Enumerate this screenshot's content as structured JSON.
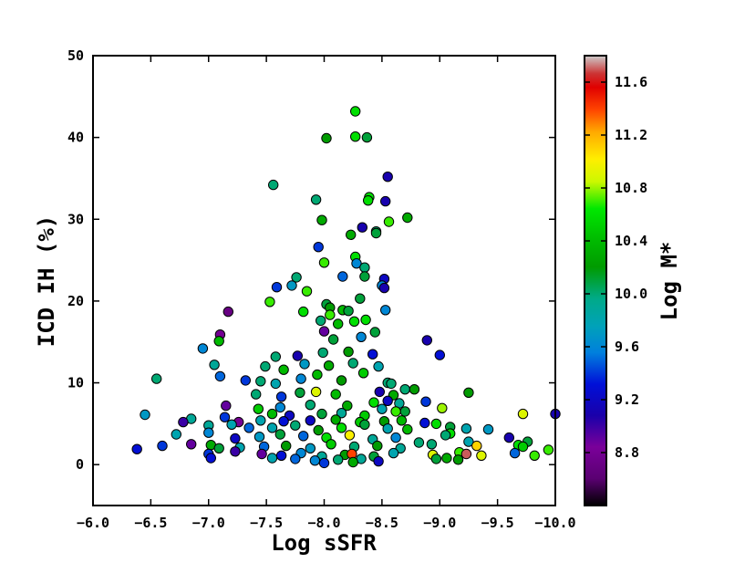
{
  "chart_data": {
    "type": "scatter",
    "title": "",
    "xlabel": "Log sSFR",
    "ylabel": "ICD IH (%)",
    "xlim": [
      -6.0,
      -10.0
    ],
    "ylim": [
      -5,
      50
    ],
    "x_ticks": [
      -6.0,
      -6.5,
      -7.0,
      -7.5,
      -8.0,
      -8.5,
      -9.0,
      -9.5,
      -10.0
    ],
    "x_tick_labels": [
      "−6.0",
      "−6.5",
      "−7.0",
      "−7.5",
      "−8.0",
      "−8.5",
      "−9.0",
      "−9.5",
      "−10.0"
    ],
    "y_ticks": [
      0,
      10,
      20,
      30,
      40,
      50
    ],
    "y_tick_labels": [
      "0",
      "10",
      "20",
      "30",
      "40",
      "50"
    ],
    "grid": false,
    "colorbar": {
      "label": "Log M*",
      "range": [
        8.4,
        11.8
      ],
      "ticks": [
        8.8,
        9.2,
        9.6,
        10.0,
        10.4,
        10.8,
        11.2,
        11.6
      ],
      "tick_labels": [
        "8.8",
        "9.2",
        "9.6",
        "10.0",
        "10.4",
        "10.8",
        "11.2",
        "11.6"
      ],
      "colormap": "nipy_spectral"
    },
    "color_encoding": "Log M*",
    "points": [
      [
        -8.27,
        43.2,
        10.6
      ],
      [
        -8.02,
        39.9,
        10.2
      ],
      [
        -8.27,
        40.1,
        10.6
      ],
      [
        -8.37,
        40.0,
        10.1
      ],
      [
        -8.55,
        35.2,
        9.1
      ],
      [
        -7.56,
        34.2,
        10.0
      ],
      [
        -8.53,
        32.2,
        9.1
      ],
      [
        -8.39,
        32.7,
        10.6
      ],
      [
        -8.38,
        32.3,
        10.6
      ],
      [
        -7.93,
        32.4,
        10.0
      ],
      [
        -8.72,
        30.2,
        10.3
      ],
      [
        -8.56,
        29.7,
        10.7
      ],
      [
        -7.98,
        29.9,
        10.3
      ],
      [
        -8.33,
        29.0,
        9.1
      ],
      [
        -8.45,
        28.5,
        10.0
      ],
      [
        -8.45,
        28.3,
        10.1
      ],
      [
        -8.23,
        28.1,
        10.3
      ],
      [
        -7.95,
        26.6,
        9.4
      ],
      [
        -8.27,
        25.4,
        10.6
      ],
      [
        -8.0,
        24.7,
        10.7
      ],
      [
        -8.28,
        24.6,
        9.6
      ],
      [
        -8.35,
        24.1,
        10.0
      ],
      [
        -8.35,
        23.0,
        10.1
      ],
      [
        -8.16,
        23.0,
        9.5
      ],
      [
        -7.76,
        22.9,
        10.0
      ],
      [
        -8.52,
        22.7,
        9.2
      ],
      [
        -7.59,
        21.7,
        9.4
      ],
      [
        -7.72,
        21.9,
        9.7
      ],
      [
        -7.85,
        21.2,
        10.7
      ],
      [
        -8.5,
        21.9,
        9.6
      ],
      [
        -8.52,
        21.6,
        9.1
      ],
      [
        -8.31,
        20.3,
        10.1
      ],
      [
        -7.53,
        19.9,
        10.7
      ],
      [
        -8.02,
        19.6,
        10.1
      ],
      [
        -8.05,
        19.2,
        10.2
      ],
      [
        -8.16,
        18.9,
        10.4
      ],
      [
        -8.21,
        18.8,
        10.1
      ],
      [
        -8.53,
        18.9,
        9.6
      ],
      [
        -7.17,
        18.7,
        8.7
      ],
      [
        -7.82,
        18.7,
        10.6
      ],
      [
        -8.05,
        18.3,
        10.7
      ],
      [
        -7.97,
        17.6,
        10.0
      ],
      [
        -8.12,
        17.2,
        10.4
      ],
      [
        -8.26,
        17.5,
        10.6
      ],
      [
        -8.36,
        17.7,
        10.6
      ],
      [
        -8.0,
        16.3,
        8.9
      ],
      [
        -8.44,
        16.2,
        10.1
      ],
      [
        -7.1,
        15.9,
        8.8
      ],
      [
        -7.09,
        15.1,
        10.4
      ],
      [
        -6.95,
        14.2,
        9.6
      ],
      [
        -8.08,
        15.3,
        10.1
      ],
      [
        -8.32,
        15.6,
        9.6
      ],
      [
        -8.89,
        15.2,
        9.1
      ],
      [
        -7.58,
        13.2,
        10.0
      ],
      [
        -7.77,
        13.3,
        9.1
      ],
      [
        -7.99,
        13.7,
        10.0
      ],
      [
        -8.21,
        13.8,
        10.2
      ],
      [
        -8.42,
        13.5,
        9.3
      ],
      [
        -9.0,
        13.4,
        9.3
      ],
      [
        -7.05,
        12.2,
        9.9
      ],
      [
        -7.49,
        12.0,
        10.0
      ],
      [
        -7.65,
        11.6,
        10.4
      ],
      [
        -7.83,
        12.3,
        9.7
      ],
      [
        -8.04,
        12.1,
        10.3
      ],
      [
        -8.25,
        12.4,
        10.0
      ],
      [
        -8.47,
        12.0,
        9.8
      ],
      [
        -7.1,
        10.8,
        9.5
      ],
      [
        -7.45,
        10.2,
        10.0
      ],
      [
        -7.8,
        10.5,
        9.6
      ],
      [
        -7.94,
        11.0,
        10.4
      ],
      [
        -8.15,
        10.3,
        10.2
      ],
      [
        -8.34,
        11.2,
        10.5
      ],
      [
        -8.55,
        10.0,
        10.0
      ],
      [
        -6.55,
        10.5,
        10.0
      ],
      [
        -7.32,
        10.3,
        9.4
      ],
      [
        -7.58,
        9.9,
        9.8
      ],
      [
        -8.58,
        9.9,
        10.0
      ],
      [
        -8.7,
        9.2,
        10.0
      ],
      [
        -8.78,
        9.2,
        10.2
      ],
      [
        -9.25,
        8.8,
        10.2
      ],
      [
        -7.41,
        8.6,
        10.0
      ],
      [
        -7.63,
        8.3,
        9.4
      ],
      [
        -7.79,
        8.8,
        10.1
      ],
      [
        -7.93,
        8.9,
        10.9
      ],
      [
        -8.1,
        8.6,
        10.4
      ],
      [
        -8.48,
        8.9,
        9.1
      ],
      [
        -8.6,
        8.5,
        10.3
      ],
      [
        -8.65,
        7.5,
        9.9
      ],
      [
        -8.88,
        7.7,
        9.4
      ],
      [
        -7.15,
        7.2,
        8.9
      ],
      [
        -7.43,
        6.8,
        10.5
      ],
      [
        -7.62,
        7.0,
        9.6
      ],
      [
        -7.88,
        7.3,
        10.0
      ],
      [
        -8.2,
        7.2,
        10.3
      ],
      [
        -8.43,
        7.6,
        10.6
      ],
      [
        -8.55,
        7.8,
        9.2
      ],
      [
        -8.7,
        6.5,
        10.1
      ],
      [
        -8.5,
        6.8,
        9.8
      ],
      [
        -6.45,
        6.1,
        9.7
      ],
      [
        -7.55,
        6.2,
        10.4
      ],
      [
        -7.7,
        6.0,
        9.2
      ],
      [
        -7.98,
        6.2,
        10.1
      ],
      [
        -8.15,
        6.3,
        9.9
      ],
      [
        -8.35,
        6.0,
        10.5
      ],
      [
        -8.62,
        6.5,
        10.7
      ],
      [
        -9.02,
        6.9,
        10.8
      ],
      [
        -9.72,
        6.2,
        10.9
      ],
      [
        -10.0,
        6.2,
        9.1
      ],
      [
        -6.85,
        5.6,
        9.9
      ],
      [
        -7.14,
        5.8,
        9.4
      ],
      [
        -7.26,
        5.2,
        8.8
      ],
      [
        -7.45,
        5.4,
        9.8
      ],
      [
        -7.65,
        5.3,
        9.3
      ],
      [
        -7.88,
        5.4,
        9.2
      ],
      [
        -8.1,
        5.5,
        10.3
      ],
      [
        -8.31,
        5.2,
        10.5
      ],
      [
        -8.52,
        5.3,
        10.2
      ],
      [
        -8.67,
        5.4,
        10.4
      ],
      [
        -8.87,
        5.1,
        9.3
      ],
      [
        -8.97,
        5.0,
        10.6
      ],
      [
        -9.09,
        4.6,
        10.1
      ],
      [
        -9.23,
        4.4,
        9.8
      ],
      [
        -9.42,
        4.3,
        9.7
      ],
      [
        -6.78,
        5.2,
        9.0
      ],
      [
        -7.0,
        4.8,
        9.9
      ],
      [
        -7.2,
        4.9,
        9.8
      ],
      [
        -7.35,
        4.5,
        9.5
      ],
      [
        -7.55,
        4.5,
        9.8
      ],
      [
        -7.75,
        4.8,
        10.0
      ],
      [
        -7.95,
        4.2,
        10.2
      ],
      [
        -8.15,
        4.5,
        10.6
      ],
      [
        -8.35,
        4.9,
        10.1
      ],
      [
        -8.55,
        4.4,
        9.8
      ],
      [
        -8.72,
        4.3,
        10.4
      ],
      [
        -9.09,
        3.8,
        10.6
      ],
      [
        -9.05,
        3.6,
        10.0
      ],
      [
        -6.72,
        3.7,
        9.8
      ],
      [
        -7.0,
        3.9,
        9.6
      ],
      [
        -7.23,
        3.2,
        9.2
      ],
      [
        -7.44,
        3.4,
        9.7
      ],
      [
        -7.62,
        3.7,
        10.1
      ],
      [
        -7.82,
        3.5,
        9.5
      ],
      [
        -8.02,
        3.3,
        10.6
      ],
      [
        -8.22,
        3.6,
        11.0
      ],
      [
        -8.42,
        3.1,
        9.9
      ],
      [
        -8.62,
        3.3,
        9.6
      ],
      [
        -8.82,
        2.7,
        10.0
      ],
      [
        -8.93,
        2.5,
        10.0
      ],
      [
        -9.25,
        2.8,
        9.8
      ],
      [
        -9.6,
        3.3,
        9.1
      ],
      [
        -9.76,
        2.8,
        10.1
      ],
      [
        -6.6,
        2.3,
        9.4
      ],
      [
        -6.85,
        2.5,
        8.9
      ],
      [
        -7.02,
        2.4,
        10.3
      ],
      [
        -7.09,
        2.0,
        10.1
      ],
      [
        -7.27,
        2.1,
        9.8
      ],
      [
        -7.48,
        2.2,
        9.5
      ],
      [
        -7.67,
        2.3,
        10.2
      ],
      [
        -7.88,
        2.0,
        9.7
      ],
      [
        -8.06,
        2.5,
        10.5
      ],
      [
        -8.26,
        2.2,
        10.0
      ],
      [
        -8.46,
        2.3,
        10.2
      ],
      [
        -8.66,
        2.0,
        9.9
      ],
      [
        -9.32,
        2.3,
        11.1
      ],
      [
        -9.68,
        2.4,
        10.6
      ],
      [
        -9.72,
        2.2,
        10.5
      ],
      [
        -9.94,
        1.8,
        10.7
      ],
      [
        -6.38,
        1.9,
        9.3
      ],
      [
        -7.0,
        1.3,
        9.4
      ],
      [
        -7.23,
        1.6,
        9.0
      ],
      [
        -7.46,
        1.3,
        8.9
      ],
      [
        -7.63,
        1.1,
        9.3
      ],
      [
        -7.8,
        1.4,
        9.6
      ],
      [
        -7.98,
        1.0,
        9.9
      ],
      [
        -8.18,
        1.2,
        10.2
      ],
      [
        -8.24,
        1.3,
        11.4
      ],
      [
        -8.43,
        1.0,
        10.1
      ],
      [
        -8.6,
        1.4,
        9.8
      ],
      [
        -8.94,
        1.2,
        10.9
      ],
      [
        -9.17,
        1.5,
        10.7
      ],
      [
        -9.23,
        1.3,
        11.7
      ],
      [
        -9.36,
        1.1,
        10.9
      ],
      [
        -9.65,
        1.4,
        9.5
      ],
      [
        -9.82,
        1.1,
        10.7
      ],
      [
        -7.02,
        0.8,
        9.3
      ],
      [
        -7.55,
        0.8,
        9.8
      ],
      [
        -7.75,
        0.7,
        9.5
      ],
      [
        -7.92,
        0.5,
        9.6
      ],
      [
        -8.12,
        0.6,
        10.0
      ],
      [
        -8.32,
        0.7,
        9.9
      ],
      [
        -8.47,
        0.4,
        9.2
      ],
      [
        -8.97,
        0.7,
        10.1
      ],
      [
        -9.16,
        0.6,
        10.2
      ],
      [
        -9.06,
        0.8,
        10.3
      ],
      [
        -8.0,
        0.2,
        9.4
      ],
      [
        -8.25,
        0.3,
        10.3
      ]
    ]
  }
}
